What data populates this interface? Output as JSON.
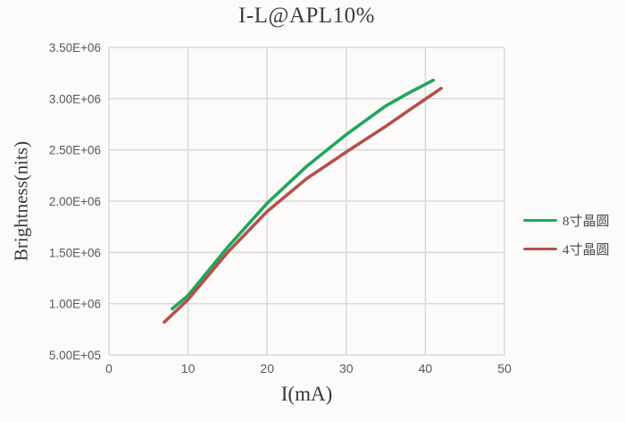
{
  "chart_data": {
    "type": "line",
    "title": "I-L@APL10%",
    "xlabel": "I(mA)",
    "ylabel": "Brightness(nits)",
    "xlim": [
      0,
      50
    ],
    "ylim": [
      500000,
      3500000
    ],
    "grid": true,
    "legend_position": "right",
    "x_ticks": [
      0,
      10,
      20,
      30,
      40,
      50
    ],
    "x_tick_labels": [
      "0",
      "10",
      "20",
      "30",
      "40",
      "50"
    ],
    "y_ticks": [
      500000,
      1000000,
      1500000,
      2000000,
      2500000,
      3000000,
      3500000
    ],
    "y_tick_labels": [
      "5.00E+05",
      "1.00E+06",
      "1.50E+06",
      "2.00E+06",
      "2.50E+06",
      "3.00E+06",
      "3.50E+06"
    ],
    "series": [
      {
        "name": "8寸晶圆",
        "color": "#1fa75d",
        "x": [
          8,
          10,
          15,
          20,
          25,
          30,
          35,
          38,
          41
        ],
        "y": [
          950000,
          1080000,
          1550000,
          1980000,
          2340000,
          2650000,
          2930000,
          3060000,
          3180000
        ]
      },
      {
        "name": "4寸晶圆",
        "color": "#b5504a",
        "x": [
          7,
          10,
          15,
          20,
          25,
          30,
          35,
          38,
          42
        ],
        "y": [
          820000,
          1040000,
          1500000,
          1900000,
          2220000,
          2480000,
          2730000,
          2890000,
          3100000
        ]
      }
    ],
    "colors": {
      "grid": "#d9d9d9",
      "tick_text": "#595959",
      "title_text": "#3d3d3d",
      "background": "#fcfbfa"
    }
  }
}
